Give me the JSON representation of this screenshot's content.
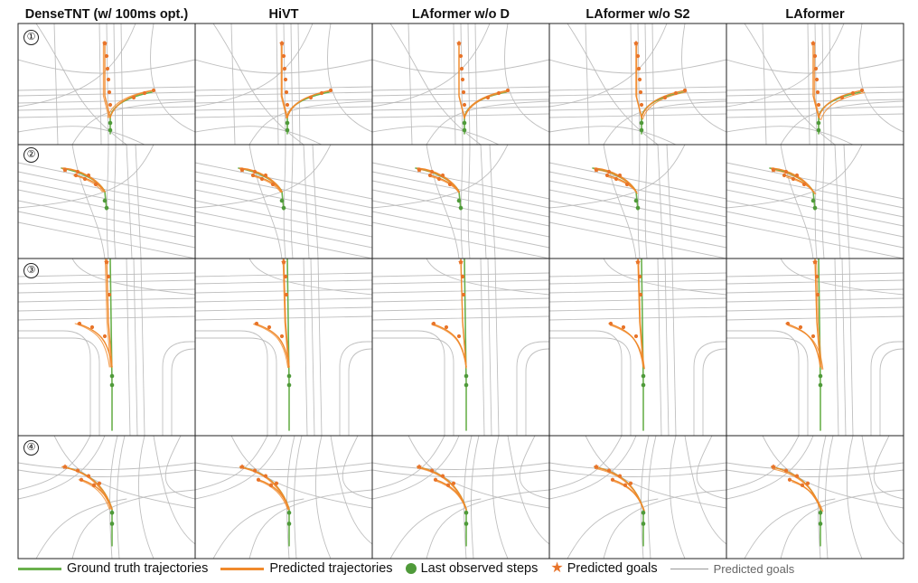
{
  "columns": [
    "DenseTNT (w/ 100ms opt.)",
    "HiVT",
    "LAformer  w/o D",
    "LAformer w/o S2",
    "LAformer"
  ],
  "rows": [
    "①",
    "②",
    "③",
    "④"
  ],
  "colors": {
    "ground_truth": "#6ab04c",
    "predicted": "#f08a2c",
    "observed": "#4f9a3a",
    "goal": "#e8742a",
    "lane": "#b8b8b8",
    "border": "#222222"
  },
  "legend": {
    "ground_truth": "Ground truth trajectories",
    "predicted": "Predicted trajectories",
    "observed": "Last observed steps",
    "goal": "Predicted goals",
    "lanes": "Predicted goals"
  }
}
